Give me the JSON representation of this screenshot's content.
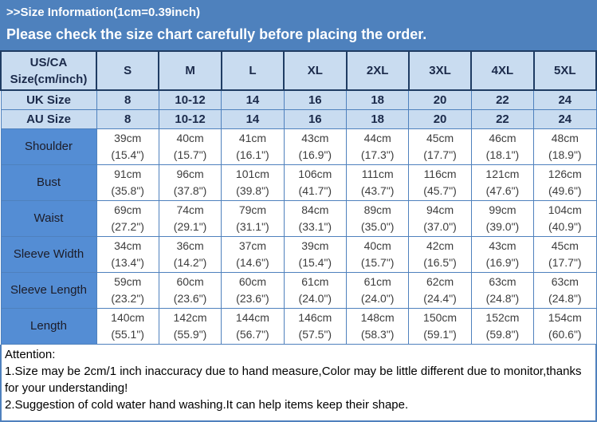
{
  "banner": {
    "line1": ">>Size Information(1cm=0.39inch)",
    "line2": "Please check the size chart carefully before placing the order."
  },
  "table": {
    "corner_line1": "US/CA",
    "corner_line2": "Size(cm/inch)",
    "size_columns": [
      "S",
      "M",
      "L",
      "XL",
      "2XL",
      "3XL",
      "4XL",
      "5XL"
    ],
    "region_rows": [
      {
        "label": "UK Size",
        "values": [
          "8",
          "10-12",
          "14",
          "16",
          "18",
          "20",
          "22",
          "24"
        ]
      },
      {
        "label": "AU Size",
        "values": [
          "8",
          "10-12",
          "14",
          "16",
          "18",
          "20",
          "22",
          "24"
        ]
      }
    ],
    "measurement_rows": [
      {
        "label": "Shoulder",
        "cm": [
          "39cm",
          "40cm",
          "41cm",
          "43cm",
          "44cm",
          "45cm",
          "46cm",
          "48cm"
        ],
        "inch": [
          "(15.4\")",
          "(15.7\")",
          "(16.1\")",
          "(16.9\")",
          "(17.3\")",
          "(17.7\")",
          "(18.1\")",
          "(18.9\")"
        ]
      },
      {
        "label": "Bust",
        "cm": [
          "91cm",
          "96cm",
          "101cm",
          "106cm",
          "111cm",
          "116cm",
          "121cm",
          "126cm"
        ],
        "inch": [
          "(35.8\")",
          "(37.8\")",
          "(39.8\")",
          "(41.7\")",
          "(43.7\")",
          "(45.7\")",
          "(47.6\")",
          "(49.6\")"
        ]
      },
      {
        "label": "Waist",
        "cm": [
          "69cm",
          "74cm",
          "79cm",
          "84cm",
          "89cm",
          "94cm",
          "99cm",
          "104cm"
        ],
        "inch": [
          "(27.2\")",
          "(29.1\")",
          "(31.1\")",
          "(33.1\")",
          "(35.0\")",
          "(37.0\")",
          "(39.0\")",
          "(40.9\")"
        ]
      },
      {
        "label": "Sleeve Width",
        "cm": [
          "34cm",
          "36cm",
          "37cm",
          "39cm",
          "40cm",
          "42cm",
          "43cm",
          "45cm"
        ],
        "inch": [
          "(13.4\")",
          "(14.2\")",
          "(14.6\")",
          "(15.4\")",
          "(15.7\")",
          "(16.5\")",
          "(16.9\")",
          "(17.7\")"
        ]
      },
      {
        "label": "Sleeve Length",
        "cm": [
          "59cm",
          "60cm",
          "60cm",
          "61cm",
          "61cm",
          "62cm",
          "63cm",
          "63cm"
        ],
        "inch": [
          "(23.2\")",
          "(23.6\")",
          "(23.6\")",
          "(24.0\")",
          "(24.0\")",
          "(24.4\")",
          "(24.8\")",
          "(24.8\")"
        ]
      },
      {
        "label": "Length",
        "cm": [
          "140cm",
          "142cm",
          "144cm",
          "146cm",
          "148cm",
          "150cm",
          "152cm",
          "154cm"
        ],
        "inch": [
          "(55.1\")",
          "(55.9\")",
          "(56.7\")",
          "(57.5\")",
          "(58.3\")",
          "(59.1\")",
          "(59.8\")",
          "(60.6\")"
        ]
      }
    ]
  },
  "attention": {
    "title": "Attention:",
    "lines": [
      "1.Size may be 2cm/1 inch inaccuracy due to hand measure,Color may be little different due to monitor,thanks for your understanding!",
      "2.Suggestion of cold water hand washing.It can help items keep their shape."
    ]
  },
  "colors": {
    "banner_bg": "#4e81bd",
    "header_cell_bg": "#c9dcf0",
    "row_label_bg": "#548dd4",
    "grid_border": "#4f81bd",
    "header_border": "#1f3c63",
    "header_text": "#1b2a4a"
  }
}
